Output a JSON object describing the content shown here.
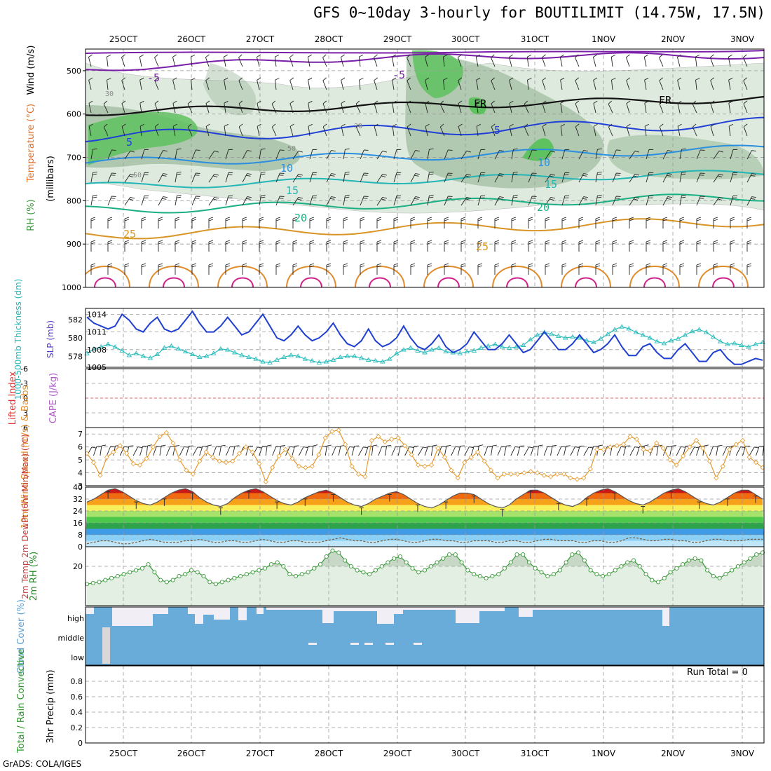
{
  "title": "GFS 0~10day 3-hourly for BOUTILIMIT (14.75W, 17.5N)",
  "footer": "GrADS: COLA/IGES",
  "dates": [
    "25OCT",
    "26OCT",
    "27OCT",
    "28OCT",
    "29OCT",
    "30OCT",
    "31OCT",
    "1NOV",
    "2NOV",
    "3NOV"
  ],
  "colors": {
    "high_rh": "#5ec25e",
    "mid_rh": "#9dbb9d",
    "low_rh": "#dfeadf",
    "slp": "#1f3fd0",
    "thickness": "#2cbcbc",
    "wind": "#e59a2e",
    "cloud": "#69acd9",
    "rh2m": "#3a9a3a"
  },
  "chart_data": [
    {
      "type": "heatmap",
      "panel": "upper-air",
      "ylabel_parts": [
        "RH (%)",
        "Temperature (°C)",
        "Wind (m/s)"
      ],
      "ylabel2": "(millibars)",
      "y_ticks": [
        500,
        600,
        700,
        800,
        900,
        1000
      ],
      "ylim": [
        450,
        1000
      ],
      "grid": true,
      "contour_labels": [
        "-5",
        "-5",
        "FR",
        "FR",
        "5",
        "5",
        "10",
        "10",
        "15",
        "15",
        "20",
        "20",
        "25",
        "25",
        "30",
        "30",
        "50",
        "50"
      ],
      "temperature_levels_c": [
        -5,
        0,
        5,
        10,
        15,
        20,
        25
      ]
    },
    {
      "type": "line",
      "panel": "slp-thickness",
      "ylabel_left": "1000-500mb Thickness (dm)",
      "ylabel_right": "SLP (mb)",
      "y_ticks_thickness": [
        578,
        580,
        582
      ],
      "y_ticks_slp": [
        1005,
        1008,
        1011,
        1014
      ],
      "ylim_slp": [
        1005,
        1015
      ],
      "ylim_thickness": [
        576.8,
        583.2
      ],
      "series": [
        {
          "name": "SLP (mb)",
          "values": [
            1013.5,
            1012.5,
            1012.0,
            1011.5,
            1012.0,
            1014.0,
            1013.0,
            1011.5,
            1011.0,
            1012.5,
            1013.5,
            1011.5,
            1011.0,
            1011.5,
            1013.0,
            1014.5,
            1012.5,
            1011.0,
            1011.0,
            1012.0,
            1013.5,
            1012.0,
            1010.5,
            1011.0,
            1012.5,
            1014.0,
            1012.0,
            1010.0,
            1009.5,
            1010.5,
            1012.0,
            1010.5,
            1009.5,
            1010.0,
            1011.0,
            1012.5,
            1010.5,
            1009.0,
            1008.5,
            1009.5,
            1011.5,
            1009.5,
            1008.5,
            1009.0,
            1010.0,
            1012.0,
            1010.0,
            1008.5,
            1008.0,
            1009.0,
            1010.5,
            1008.5,
            1007.5,
            1008.0,
            1009.0,
            1011.0,
            1009.5,
            1008.0,
            1008.0,
            1009.0,
            1010.5,
            1009.0,
            1007.5,
            1008.0,
            1009.5,
            1011.0,
            1009.5,
            1008.0,
            1008.0,
            1009.0,
            1010.5,
            1009.0,
            1007.5,
            1008.0,
            1009.0,
            1010.5,
            1008.5,
            1007.0,
            1007.0,
            1008.5,
            1009.0,
            1007.5,
            1006.5,
            1006.5,
            1008.0,
            1009.0,
            1007.5,
            1006.0,
            1006.0,
            1007.5,
            1008.0,
            1006.5,
            1005.5,
            1005.5,
            1006.0,
            1006.5,
            1006.2
          ]
        },
        {
          "name": "1000-500mb Thickness (dm)",
          "values": [
            578.3,
            578.8,
            579.0,
            579.3,
            579.0,
            578.6,
            578.1,
            578.3,
            578.0,
            577.8,
            578.2,
            578.9,
            579.1,
            578.8,
            578.5,
            578.2,
            577.9,
            578.0,
            578.3,
            578.8,
            578.7,
            578.4,
            578.1,
            577.9,
            577.7,
            577.4,
            577.3,
            577.6,
            577.9,
            578.1,
            578.0,
            577.7,
            577.5,
            577.3,
            577.4,
            577.6,
            577.9,
            578.0,
            578.0,
            577.8,
            577.6,
            577.5,
            577.4,
            577.7,
            578.3,
            578.7,
            578.9,
            578.6,
            578.4,
            578.7,
            578.9,
            578.5,
            578.4,
            578.3,
            578.5,
            578.6,
            578.9,
            579.1,
            579.3,
            579.0,
            578.9,
            579.0,
            579.2,
            579.8,
            580.3,
            580.6,
            580.4,
            580.2,
            580.0,
            580.1,
            580.0,
            579.7,
            579.5,
            579.9,
            580.4,
            580.9,
            581.2,
            581.0,
            580.6,
            580.3,
            580.0,
            579.6,
            579.4,
            579.7,
            579.9,
            580.3,
            580.7,
            580.9,
            580.6,
            580.1,
            579.6,
            579.3,
            579.4,
            579.2,
            579.0,
            579.3,
            579.5
          ]
        }
      ]
    },
    {
      "type": "line",
      "panel": "cape-li",
      "ylabel_left": "Lifted Index",
      "ylabel_right": "CAPE (J/kg)",
      "y_ticks": [
        "-6",
        "-3",
        "0",
        "3",
        "6"
      ],
      "ylim": [
        -6,
        6
      ]
    },
    {
      "type": "line",
      "panel": "wind10m",
      "ylabel": "10m Wind Speed (m/s) & Barbs",
      "y_ticks": [
        3,
        4,
        5,
        6,
        7
      ],
      "ylim": [
        3,
        7.5
      ],
      "series": [
        {
          "name": "10m Wind Speed (m/s)",
          "values": [
            5.5,
            4.8,
            3.8,
            5.2,
            5.6,
            6.1,
            5.5,
            4.7,
            4.6,
            5.1,
            6.0,
            6.8,
            7.1,
            6.3,
            5.0,
            4.2,
            3.9,
            4.9,
            5.6,
            5.2,
            4.9,
            4.8,
            4.9,
            5.5,
            6.0,
            5.6,
            4.7,
            3.3,
            4.4,
            5.3,
            5.8,
            5.1,
            4.5,
            4.4,
            4.5,
            5.4,
            6.7,
            7.2,
            7.3,
            6.2,
            4.5,
            3.9,
            3.7,
            6.5,
            6.8,
            6.4,
            6.6,
            6.7,
            6.1,
            5.4,
            4.6,
            4.5,
            4.6,
            5.9,
            5.2,
            4.2,
            3.6,
            4.8,
            5.2,
            5.6,
            4.9,
            4.2,
            3.6,
            3.9,
            3.9,
            3.9,
            4.0,
            4.1,
            4.0,
            3.8,
            3.7,
            3.9,
            3.9,
            3.6,
            3.5,
            3.6,
            4.3,
            5.8,
            5.8,
            6.0,
            6.1,
            6.2,
            6.8,
            6.6,
            5.8,
            5.7,
            6.3,
            5.9,
            5.0,
            4.6,
            5.3,
            6.0,
            6.5,
            5.9,
            4.9,
            3.6,
            4.5,
            5.8,
            6.2,
            6.5,
            5.2,
            4.8,
            4.4
          ]
        }
      ]
    },
    {
      "type": "area",
      "panel": "temp2m",
      "ylabel": "2m Temp 2m DewPt (6hr Min/Max) (°C)",
      "y_ticks": [
        0,
        8,
        16,
        24,
        32,
        40
      ],
      "ylim": [
        0,
        40
      ],
      "series": [
        {
          "name": "2m Temp",
          "values": [
            30,
            32,
            35,
            38,
            39,
            37,
            34,
            31,
            29,
            28,
            30,
            33,
            36,
            38,
            39,
            37,
            33,
            30,
            28,
            27,
            29,
            33,
            36,
            38,
            39,
            37,
            34,
            31,
            29,
            28,
            30,
            33,
            35,
            37,
            38,
            36,
            33,
            30,
            28,
            27,
            29,
            32,
            34,
            36,
            37,
            35,
            32,
            29,
            27,
            26,
            28,
            31,
            34,
            36,
            36,
            35,
            32,
            29,
            27,
            26,
            28,
            32,
            35,
            38,
            38,
            36,
            33,
            30,
            28,
            27,
            29,
            33,
            36,
            38,
            39,
            37,
            34,
            31,
            29,
            28,
            30,
            33,
            36,
            38,
            39,
            37,
            34,
            31,
            29,
            28,
            30,
            33,
            36,
            38,
            38,
            35,
            32
          ]
        },
        {
          "name": "2m DewPt",
          "values": [
            2,
            3,
            4,
            4,
            3,
            2,
            2,
            3,
            4,
            5,
            4,
            3,
            3,
            3,
            4,
            4,
            5,
            4,
            3,
            3,
            4,
            4,
            3,
            3,
            4,
            5,
            4,
            3,
            3,
            4,
            4,
            3,
            3,
            3,
            4,
            5,
            6,
            5,
            4,
            4,
            3,
            3,
            4,
            5,
            5,
            4,
            3,
            3,
            4,
            5,
            5,
            4,
            4,
            3,
            3,
            4,
            4,
            4,
            3,
            3,
            4,
            4,
            3,
            3,
            4,
            5,
            5,
            4,
            4,
            4,
            3,
            3,
            4,
            4,
            3,
            3,
            4,
            6,
            6,
            5,
            4,
            4,
            5,
            5,
            4,
            4,
            3,
            3,
            4,
            5,
            5,
            4,
            4,
            4,
            5,
            5,
            5
          ]
        }
      ]
    },
    {
      "type": "line",
      "panel": "rh2m",
      "ylabel": "2m RH (%)",
      "y_ticks": [
        20
      ],
      "series": [
        {
          "name": "2m RH (%)",
          "values": [
            11,
            11.5,
            12,
            13,
            14,
            15,
            16,
            17,
            18,
            19,
            21,
            17,
            13,
            12,
            13,
            15,
            16,
            18,
            17,
            15,
            12,
            11,
            12,
            13,
            14,
            15,
            16,
            17,
            18,
            19,
            21,
            22,
            20,
            16,
            15,
            16,
            17,
            19,
            21,
            25,
            28,
            27,
            23,
            20,
            18,
            17,
            16,
            18,
            20,
            22,
            24,
            25,
            22,
            19,
            17,
            18,
            20,
            22,
            24,
            26,
            26,
            22,
            18,
            16,
            15,
            14,
            15,
            16,
            19,
            22,
            26,
            26,
            22,
            19,
            17,
            15,
            16,
            18,
            22,
            26,
            27,
            23,
            18,
            16,
            15,
            16,
            18,
            20,
            22,
            23,
            20,
            16,
            13,
            12,
            14,
            17,
            19,
            21,
            23,
            24,
            23,
            18,
            15,
            14,
            16,
            18,
            20,
            22,
            24,
            26,
            27
          ]
        }
      ]
    },
    {
      "type": "bar",
      "panel": "cloud-cover",
      "ylabel": "Cloud Cover (%)",
      "levels": [
        "high",
        "middle",
        "low"
      ]
    },
    {
      "type": "bar",
      "panel": "precip",
      "ylabel_left": "Total / Rain Convective",
      "ylabel_right": "3hr Precip (mm)",
      "y_ticks": [
        "0",
        "0.2",
        "0.4",
        "0.6",
        "0.8"
      ],
      "ylim": [
        0,
        1
      ],
      "values": [],
      "run_total": "Run Total = 0"
    }
  ]
}
